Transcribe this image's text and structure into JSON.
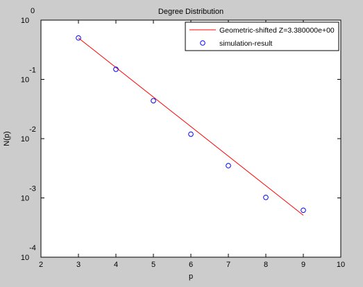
{
  "chart_data": {
    "type": "scatter",
    "title": "Degree Distribution",
    "xlabel": "p",
    "ylabel": "N(p)",
    "xlim": [
      2,
      10
    ],
    "ylim_log10": [
      -4,
      0
    ],
    "y_scale": "log",
    "x_ticks": [
      2,
      3,
      4,
      5,
      6,
      7,
      8,
      9,
      10
    ],
    "x_tick_labels": [
      "2",
      "3",
      "4",
      "5",
      "6",
      "7",
      "8",
      "9",
      "10"
    ],
    "y_tick_exponents": [
      0,
      -1,
      -2,
      -3,
      -4
    ],
    "y_tick_exponent_labels": [
      "0",
      "-1",
      "-2",
      "-3",
      "-4"
    ],
    "y_tick_base_label": "10",
    "legend_position": "top-right",
    "series": [
      {
        "name": "Geometric-shifted Z=3.380000e+00",
        "kind": "line",
        "color": "#ff0000",
        "x": [
          3,
          9
        ],
        "y": [
          0.5,
          0.00051
        ]
      },
      {
        "name": "simulation-result",
        "kind": "markers",
        "marker": "circle",
        "color": "#0000ff",
        "x": [
          3,
          4,
          5,
          6,
          7,
          8,
          9
        ],
        "y": [
          0.5,
          0.148,
          0.0436,
          0.0119,
          0.0035,
          0.00102,
          0.00062
        ]
      }
    ]
  }
}
